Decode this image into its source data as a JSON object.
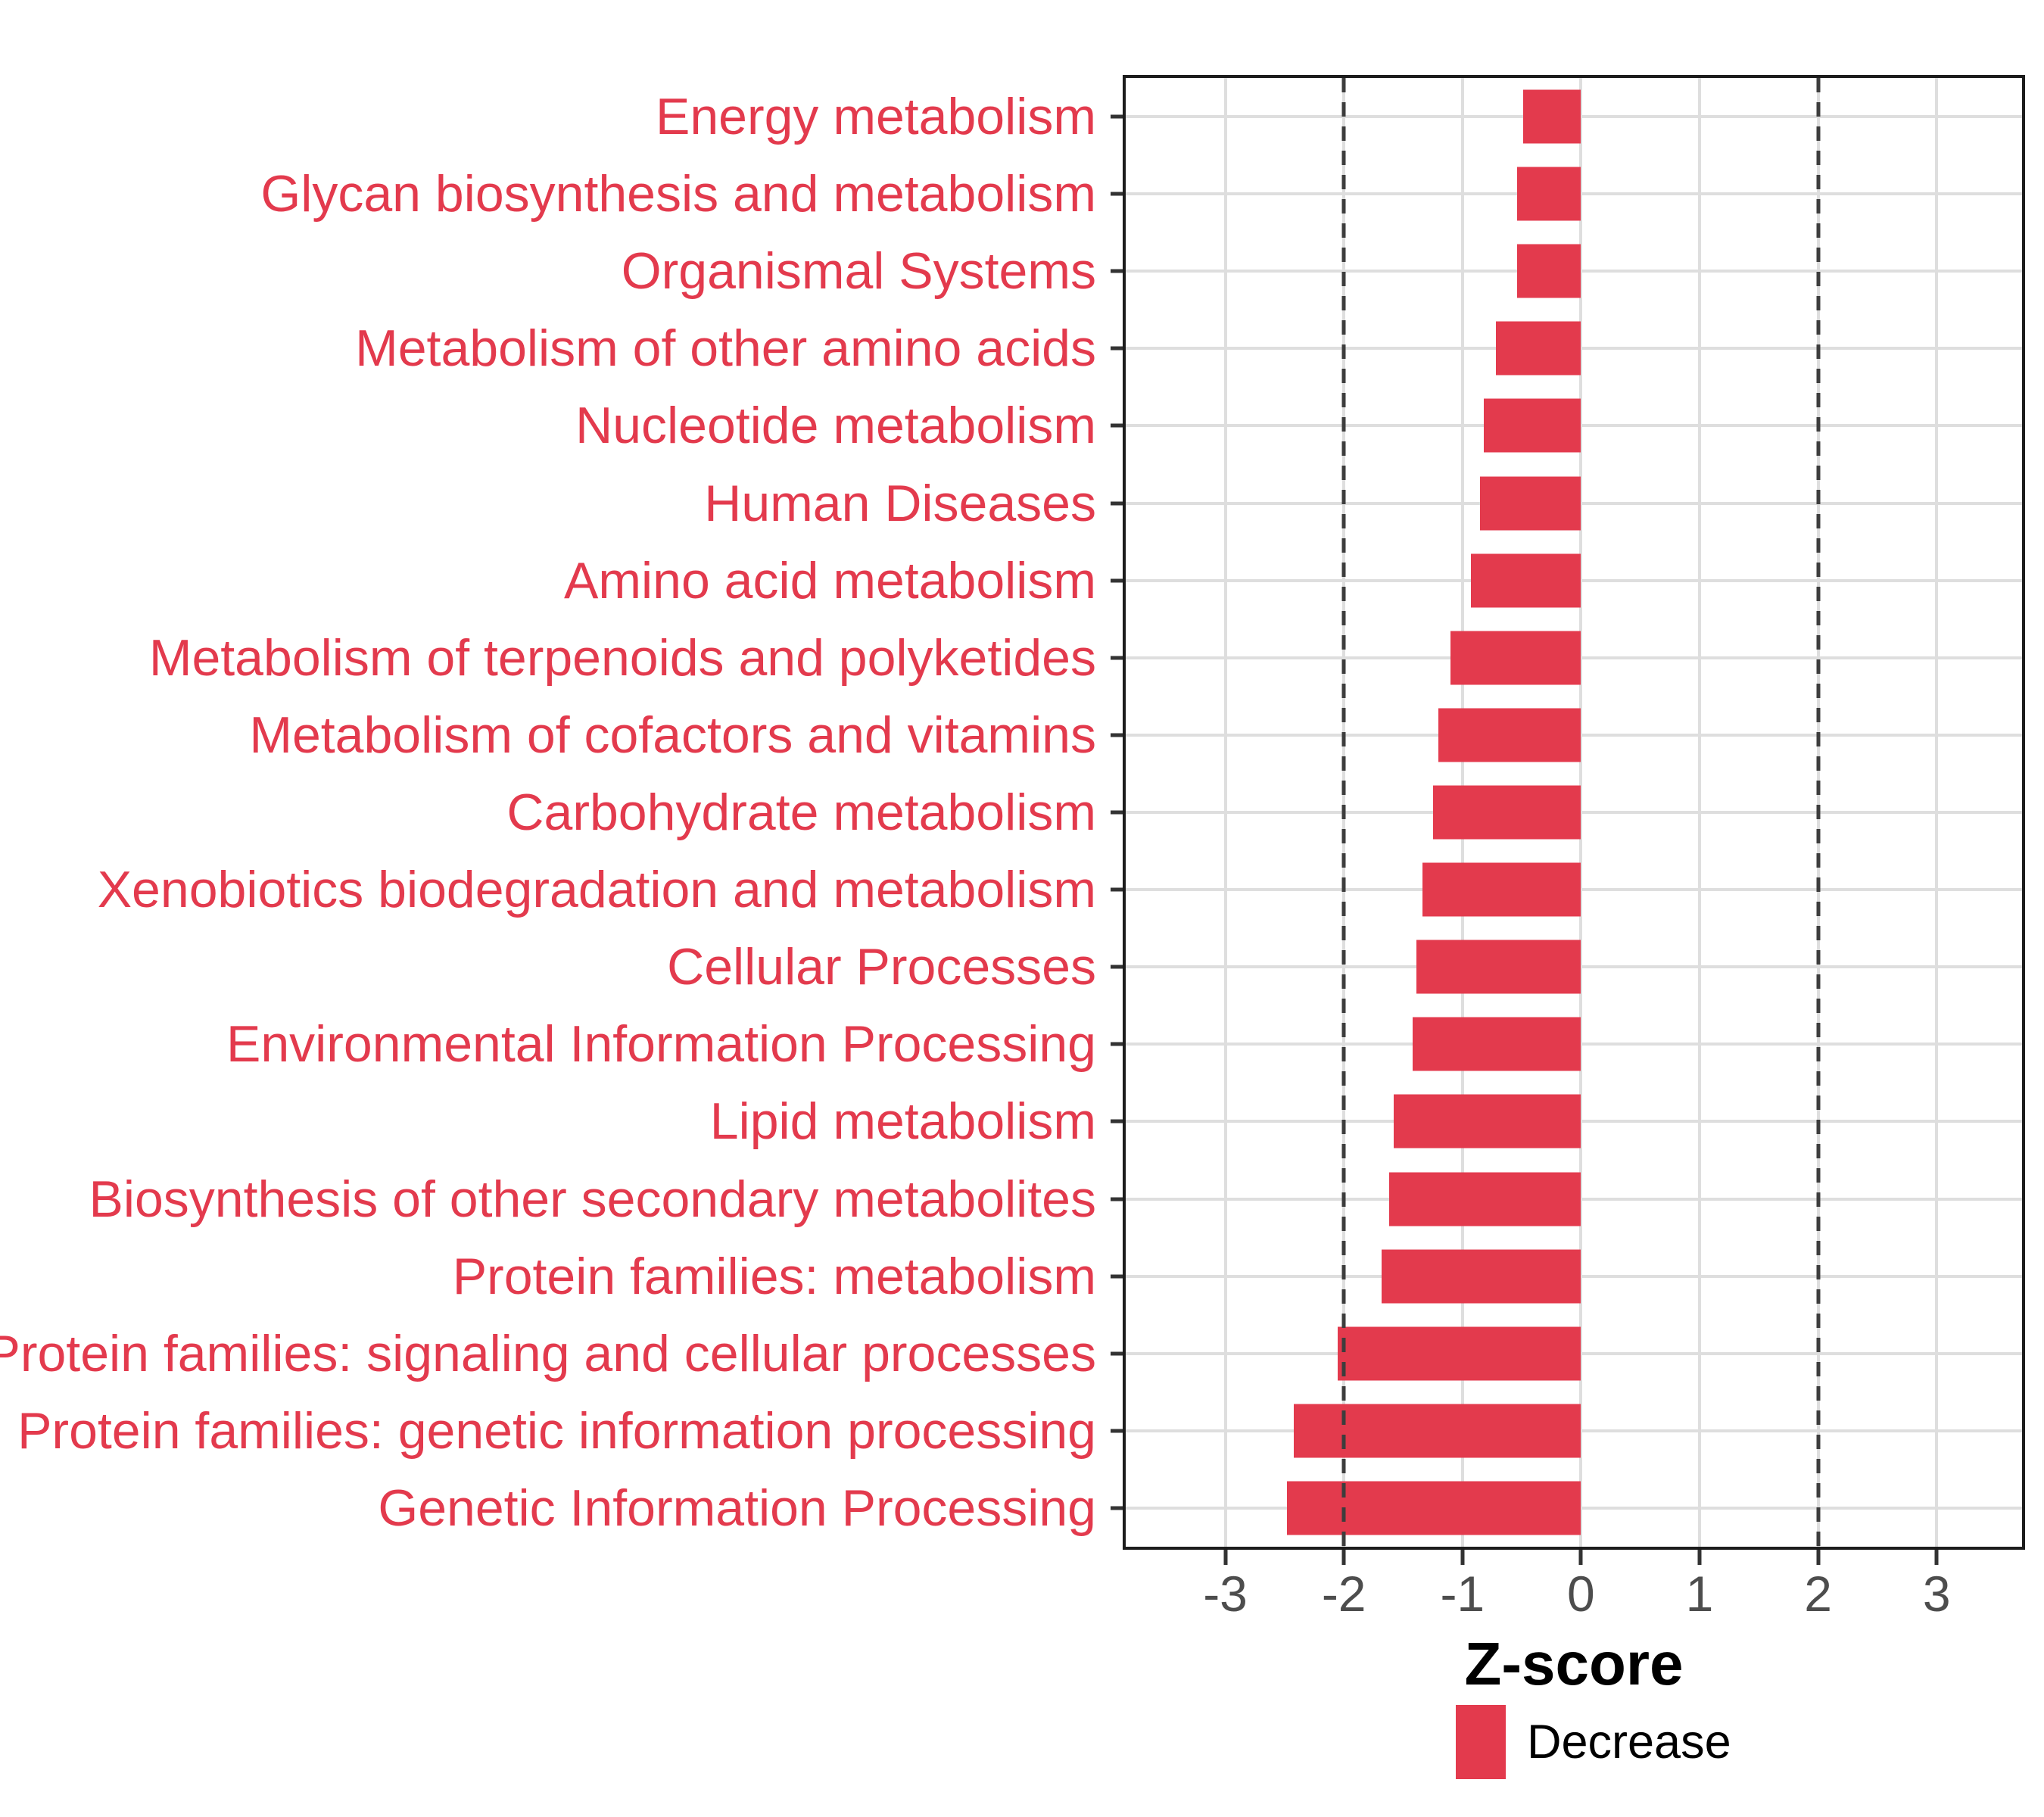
{
  "chart_data": {
    "type": "bar",
    "orientation": "horizontal",
    "title": "",
    "xlabel": "Z-score",
    "categories": [
      "Energy metabolism",
      "Glycan biosynthesis and metabolism",
      "Organismal Systems",
      "Metabolism of other amino acids",
      "Nucleotide metabolism",
      "Human Diseases",
      "Amino acid metabolism",
      "Metabolism of terpenoids and polyketides",
      "Metabolism of cofactors and vitamins",
      "Carbohydrate metabolism",
      "Xenobiotics biodegradation and metabolism",
      "Cellular Processes",
      "Environmental Information Processing",
      "Lipid metabolism",
      "Biosynthesis of other secondary metabolites",
      "Protein families: metabolism",
      "Protein families: signaling and cellular processes",
      "Protein families: genetic information processing",
      "Genetic Information Processing"
    ],
    "values": [
      -0.49,
      -0.54,
      -0.54,
      -0.72,
      -0.82,
      -0.85,
      -0.93,
      -1.1,
      -1.2,
      -1.25,
      -1.34,
      -1.39,
      -1.42,
      -1.58,
      -1.62,
      -1.68,
      -2.05,
      -2.42,
      -2.48
    ],
    "series": [
      {
        "name": "Decrease",
        "color": "#E33A4D"
      }
    ],
    "xlim": [
      -3.84,
      3.72
    ],
    "xticks": [
      -3,
      -2,
      -1,
      0,
      1,
      2,
      3
    ],
    "xtick_labels": [
      "-3",
      "-2",
      "-1",
      "0",
      "1",
      "2",
      "3"
    ],
    "reference_lines": [
      -2,
      2
    ],
    "grid": true,
    "legend_position": "bottom",
    "bar_color": "#E33A4D",
    "category_label_color": "#E33A4D",
    "reference_line_style": "dashed"
  },
  "legend": {
    "label": "Decrease"
  },
  "axis": {
    "xlabel": "Z-score"
  }
}
